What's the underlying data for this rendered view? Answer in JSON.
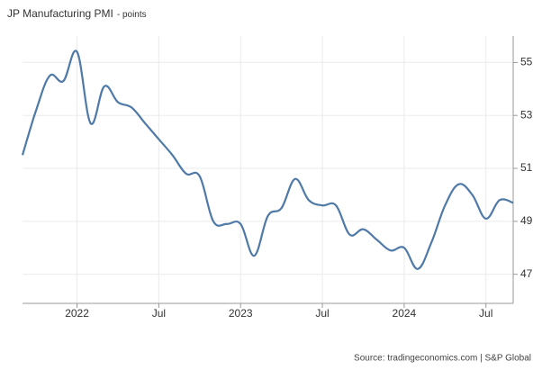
{
  "chart_data": {
    "type": "line",
    "title": "JP Manufacturing PMI",
    "subtitle": "- points",
    "source": "Source: tradingeconomics.com | S&P Global",
    "categories": [
      null,
      null,
      null,
      null,
      "2022",
      null,
      null,
      null,
      null,
      null,
      "Jul",
      null,
      null,
      null,
      null,
      null,
      "2023",
      null,
      null,
      null,
      null,
      null,
      "Jul",
      null,
      null,
      null,
      null,
      null,
      "2024",
      null,
      null,
      null,
      null,
      null,
      "Jul",
      null,
      null
    ],
    "series": [
      {
        "name": "JP Manufacturing PMI",
        "color": "#4f79a7",
        "values": [
          51.5,
          53.2,
          54.5,
          54.3,
          55.4,
          52.7,
          54.1,
          53.5,
          53.3,
          52.7,
          52.1,
          51.5,
          50.8,
          50.7,
          49.0,
          48.9,
          48.9,
          47.7,
          49.2,
          49.5,
          50.6,
          49.8,
          49.6,
          49.6,
          48.5,
          48.7,
          48.3,
          47.9,
          48.0,
          47.2,
          48.2,
          49.6,
          50.4,
          50.0,
          49.1,
          49.8,
          49.7
        ]
      }
    ],
    "ylim": [
      45.9,
      56
    ],
    "yticks": [
      47,
      49,
      51,
      53,
      55
    ],
    "grid": true
  }
}
